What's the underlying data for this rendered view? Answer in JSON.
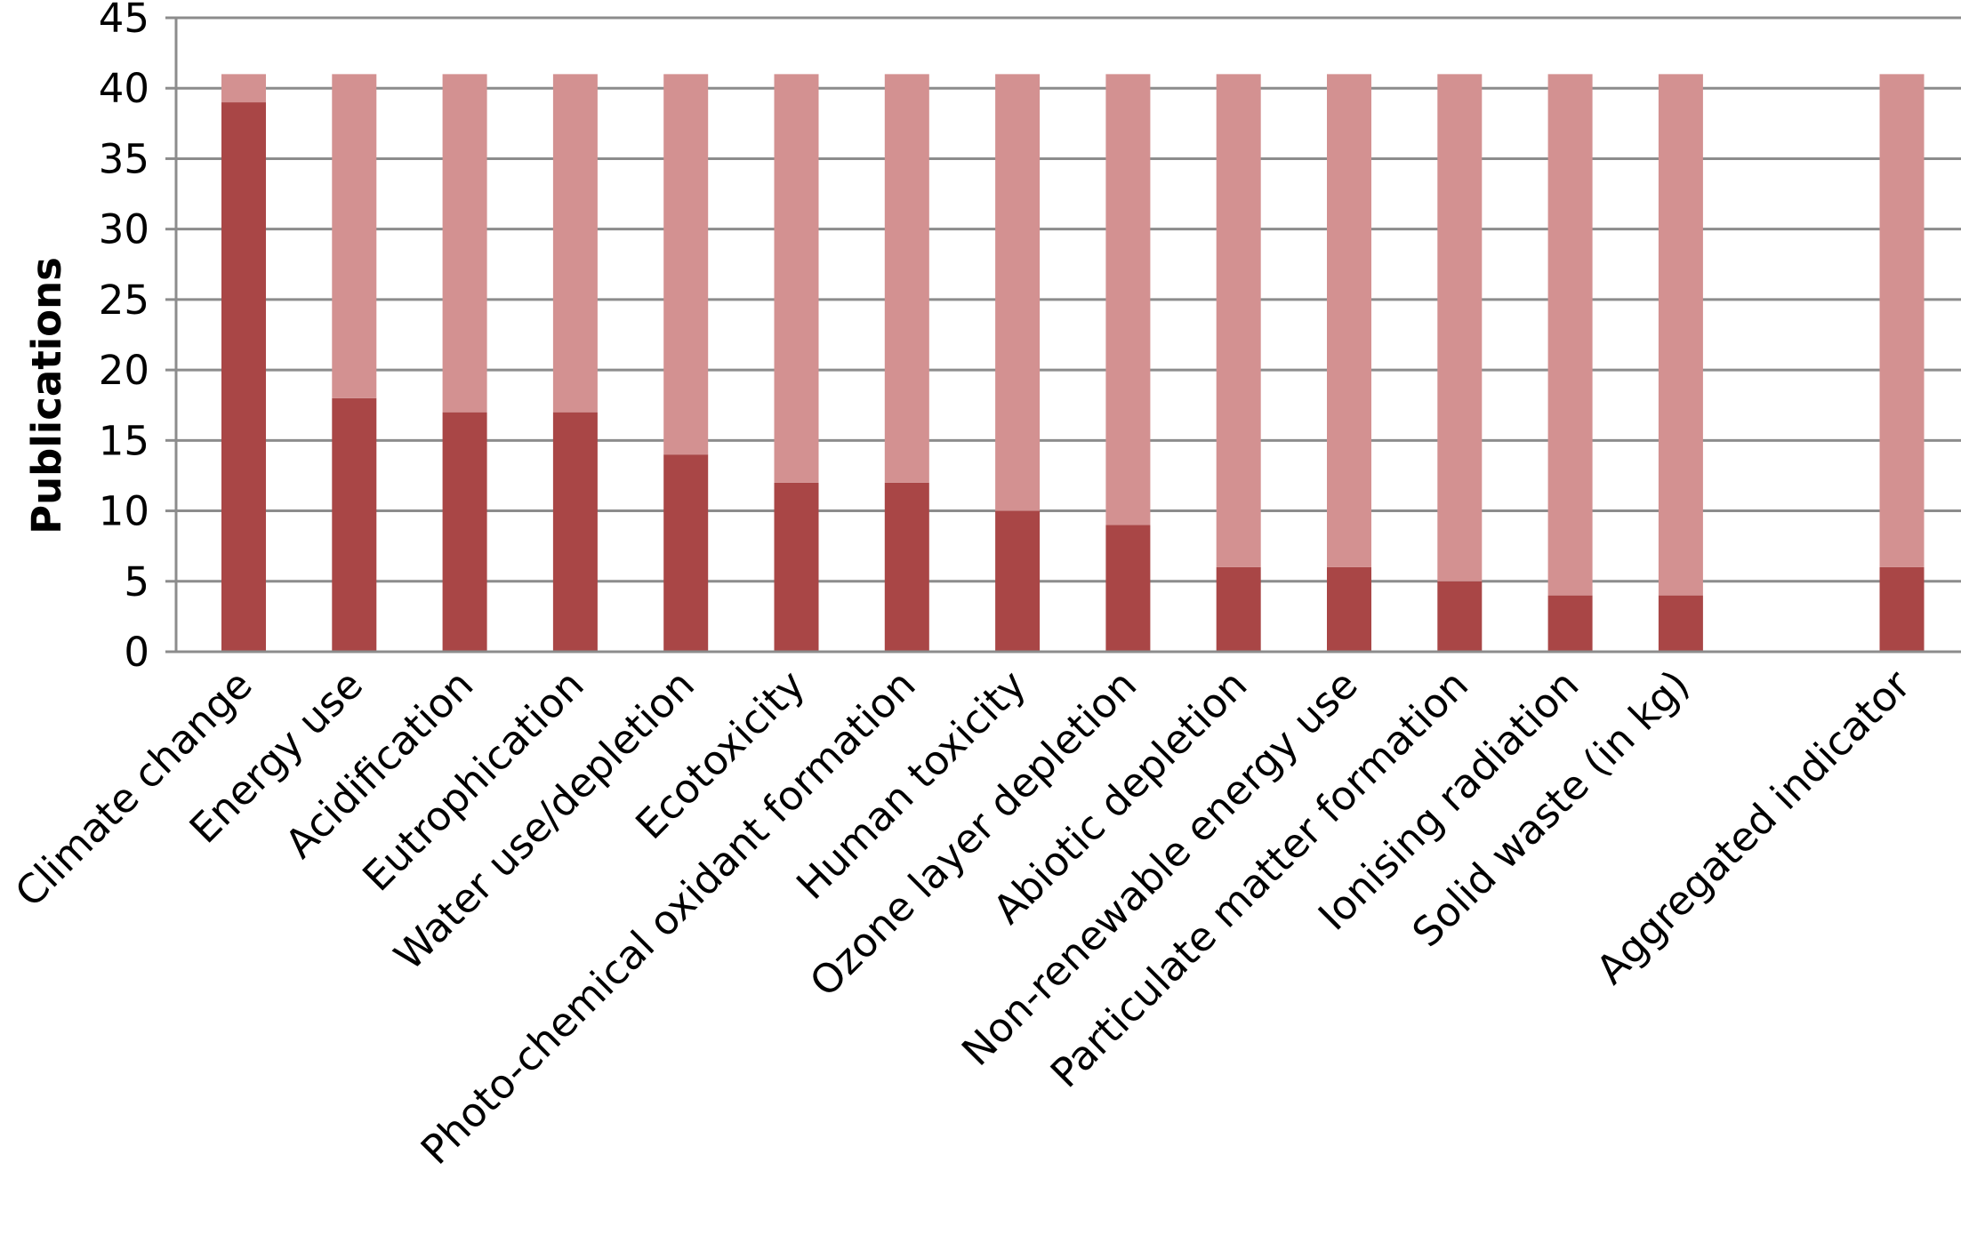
{
  "chart_data": {
    "type": "bar",
    "stacked": true,
    "ylabel": "Publications",
    "xlabel": "",
    "ylim": [
      0,
      45
    ],
    "yticks": [
      "0",
      "5",
      "10",
      "15",
      "20",
      "25",
      "30",
      "35",
      "40",
      "45"
    ],
    "grid": true,
    "categories": [
      "Climate change",
      "Energy use",
      "Acidification",
      "Eutrophication",
      "Water use/depletion",
      "Ecotoxicity",
      "Photo-chemical oxidant formation",
      "Human toxicity",
      "Ozone layer depletion",
      "Abiotic depletion",
      "Non-renewable energy use",
      "Particulate matter formation",
      "Ionising radiation",
      "Solid waste (in kg)",
      "",
      "Aggregated indicator"
    ],
    "series": [
      {
        "color": "#a94646",
        "values": [
          39,
          18,
          17,
          17,
          14,
          12,
          12,
          10,
          9,
          6,
          6,
          5,
          4,
          4,
          null,
          6
        ]
      },
      {
        "color": "#d39191",
        "values": [
          2,
          23,
          24,
          24,
          27,
          29,
          29,
          31,
          32,
          35,
          35,
          36,
          37,
          37,
          null,
          35
        ]
      }
    ]
  }
}
